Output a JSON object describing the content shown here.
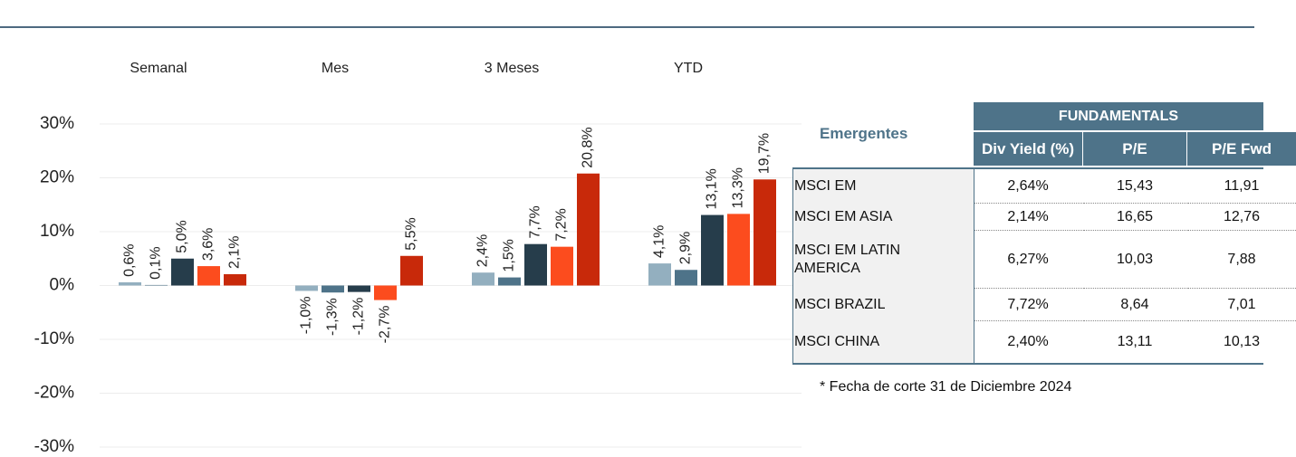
{
  "chart_data": {
    "type": "bar",
    "categories": [
      "Semanal",
      "Mes",
      "3 Meses",
      "YTD"
    ],
    "series": [
      {
        "color": "#93afbf",
        "values": [
          0.6,
          -1.0,
          2.4,
          4.1
        ],
        "value_labels": [
          "0,6%",
          "-1,0%",
          "2,4%",
          "4,1%"
        ]
      },
      {
        "color": "#4e7389",
        "values": [
          0.1,
          -1.3,
          1.5,
          2.9
        ],
        "value_labels": [
          "0,1%",
          "-1,3%",
          "1,5%",
          "2,9%"
        ]
      },
      {
        "color": "#263d4b",
        "values": [
          5.0,
          -1.2,
          7.7,
          13.1
        ],
        "value_labels": [
          "5,0%",
          "-1,2%",
          "7,7%",
          "13,1%"
        ]
      },
      {
        "color": "#fc4c1e",
        "values": [
          3.6,
          -2.7,
          7.2,
          13.3
        ],
        "value_labels": [
          "3,6%",
          "-2,7%",
          "7,2%",
          "13,3%"
        ]
      },
      {
        "color": "#c8290a",
        "values": [
          2.1,
          5.5,
          20.8,
          19.7
        ],
        "value_labels": [
          "2,1%",
          "5,5%",
          "20,8%",
          "19,7%"
        ]
      }
    ],
    "ylim": [
      -30,
      30
    ],
    "yticks": [
      {
        "value": -30,
        "label": "-30%"
      },
      {
        "value": -20,
        "label": "-20%"
      },
      {
        "value": -10,
        "label": "-10%"
      },
      {
        "value": 0,
        "label": "0%"
      },
      {
        "value": 10,
        "label": "10%"
      },
      {
        "value": 20,
        "label": "20%"
      },
      {
        "value": 30,
        "label": "30%"
      }
    ],
    "grid": true
  },
  "table": {
    "title": "Emergentes",
    "group": "FUNDAMENTALS",
    "columns": [
      "Div Yield (%)",
      "P/E",
      "P/E Fwd"
    ],
    "rows": [
      [
        "MSCI EM",
        "2,64%",
        "15,43",
        "11,91"
      ],
      [
        "MSCI EM ASIA",
        "2,14%",
        "16,65",
        "12,76"
      ],
      [
        "MSCI EM LATIN AMERICA",
        "6,27%",
        "10,03",
        "7,88"
      ],
      [
        "MSCI BRAZIL",
        "7,72%",
        "8,64",
        "7,01"
      ],
      [
        "MSCI CHINA",
        "2,40%",
        "13,11",
        "10,13"
      ]
    ]
  },
  "note": "* Fecha de corte 31 de Diciembre 2024"
}
